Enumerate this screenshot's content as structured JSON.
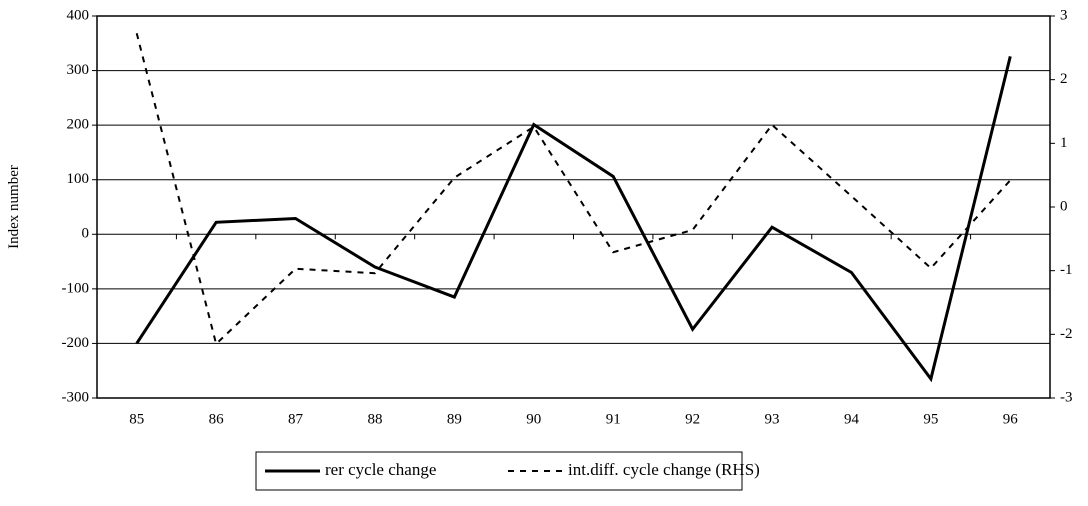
{
  "chart_data": {
    "type": "line",
    "y_label": "Index number",
    "categories": [
      "85",
      "86",
      "87",
      "88",
      "89",
      "90",
      "91",
      "92",
      "93",
      "94",
      "95",
      "96"
    ],
    "series": [
      {
        "name": "rer cycle change",
        "color": "#000000",
        "dash": "solid",
        "values": [
          -200,
          22,
          29,
          -60,
          -115,
          201,
          106,
          -174,
          13,
          -70,
          -265,
          326
        ]
      },
      {
        "name": "int.diff. cycle change (RHS)",
        "color": "#000000",
        "dash": "dashed",
        "axis": "y2",
        "values": [
          2.73,
          -2.15,
          -0.97,
          -1.04,
          0.46,
          1.26,
          -0.71,
          -0.36,
          1.29,
          0.17,
          -0.96,
          0.42
        ]
      }
    ],
    "ylim": [
      -300,
      400
    ],
    "yticks": [
      -300,
      -200,
      -100,
      0,
      100,
      200,
      300,
      400
    ],
    "y2lim": [
      -3,
      3
    ],
    "y2ticks": [
      -3,
      -2,
      -1,
      0,
      1,
      2,
      3
    ],
    "grid": true,
    "legend": "bottom"
  }
}
